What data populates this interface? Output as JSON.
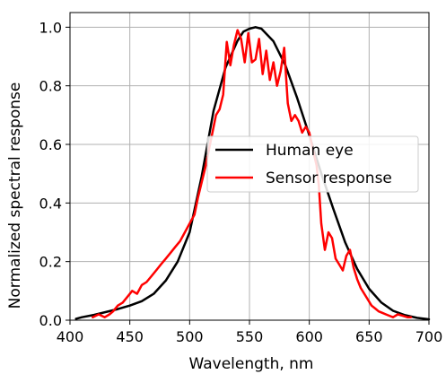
{
  "chart_data": {
    "type": "line",
    "title": "",
    "xlabel": "Wavelength, nm",
    "ylabel": "Normalized spectral response",
    "xlim": [
      400,
      700
    ],
    "ylim": [
      0,
      1.05
    ],
    "xticks": [
      400,
      450,
      500,
      550,
      600,
      650,
      700
    ],
    "yticks": [
      0.0,
      0.2,
      0.4,
      0.6,
      0.8,
      1.0
    ],
    "xtick_labels": [
      "400",
      "450",
      "500",
      "550",
      "600",
      "650",
      "700"
    ],
    "ytick_labels": [
      "0.0",
      "0.2",
      "0.4",
      "0.6",
      "0.8",
      "1.0"
    ],
    "grid": true,
    "legend_position": "center-right",
    "series": [
      {
        "name": "Human eye",
        "color": "#000000",
        "x": [
          405,
          410,
          420,
          430,
          440,
          450,
          460,
          470,
          480,
          490,
          500,
          510,
          520,
          530,
          540,
          545,
          550,
          555,
          560,
          570,
          580,
          590,
          600,
          610,
          620,
          630,
          640,
          650,
          660,
          670,
          680,
          690,
          700
        ],
        "y": [
          0.005,
          0.01,
          0.018,
          0.028,
          0.038,
          0.05,
          0.065,
          0.09,
          0.135,
          0.2,
          0.3,
          0.49,
          0.715,
          0.862,
          0.954,
          0.985,
          0.995,
          1.0,
          0.995,
          0.952,
          0.87,
          0.757,
          0.631,
          0.501,
          0.381,
          0.265,
          0.175,
          0.107,
          0.061,
          0.032,
          0.017,
          0.008,
          0.003
        ]
      },
      {
        "name": "Sensor response",
        "color": "#ff0000",
        "x": [
          419,
          424,
          429,
          433,
          436,
          440,
          444,
          448,
          452,
          456,
          460,
          464,
          468,
          472,
          476,
          480,
          484,
          488,
          492,
          496,
          500,
          504,
          507,
          510,
          513,
          516,
          519,
          522,
          525,
          528,
          531,
          534,
          537,
          540,
          543,
          546,
          549,
          552,
          555,
          558,
          561,
          564,
          567,
          570,
          573,
          576,
          579,
          582,
          585,
          588,
          591,
          594,
          597,
          600,
          603,
          606,
          608,
          610,
          613,
          616,
          619,
          622,
          625,
          628,
          631,
          634,
          637,
          640,
          643,
          646,
          649,
          652,
          655,
          658,
          661,
          664,
          667,
          670,
          674,
          678,
          682,
          685
        ],
        "y": [
          0.01,
          0.02,
          0.01,
          0.02,
          0.03,
          0.05,
          0.06,
          0.08,
          0.1,
          0.09,
          0.12,
          0.13,
          0.15,
          0.17,
          0.19,
          0.21,
          0.23,
          0.25,
          0.27,
          0.3,
          0.33,
          0.36,
          0.42,
          0.47,
          0.52,
          0.58,
          0.64,
          0.7,
          0.72,
          0.77,
          0.95,
          0.87,
          0.94,
          0.99,
          0.96,
          0.88,
          0.98,
          0.88,
          0.89,
          0.96,
          0.84,
          0.92,
          0.82,
          0.88,
          0.8,
          0.85,
          0.93,
          0.74,
          0.68,
          0.7,
          0.68,
          0.64,
          0.66,
          0.64,
          0.58,
          0.53,
          0.46,
          0.33,
          0.24,
          0.3,
          0.28,
          0.21,
          0.19,
          0.17,
          0.22,
          0.24,
          0.18,
          0.14,
          0.11,
          0.09,
          0.07,
          0.05,
          0.04,
          0.03,
          0.025,
          0.02,
          0.015,
          0.01,
          0.02,
          0.015,
          0.01,
          0.01
        ]
      }
    ]
  }
}
